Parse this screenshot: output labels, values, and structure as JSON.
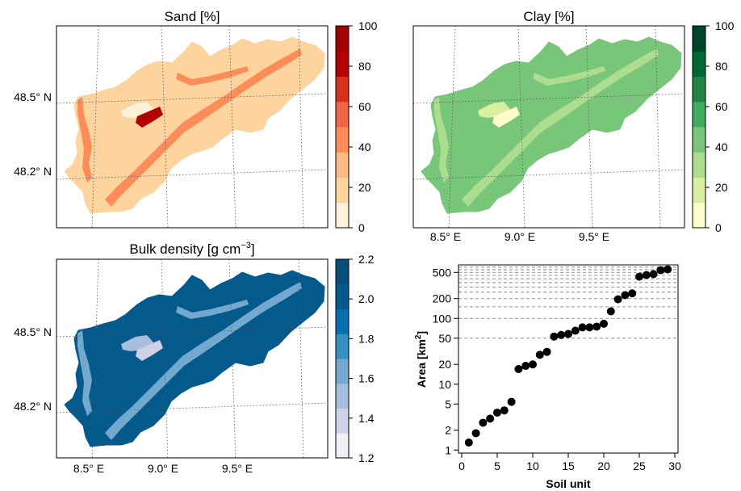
{
  "chart_data": [
    {
      "type": "map",
      "title": "Sand [%]",
      "lat_labels": [
        "48.5° N",
        "48.2° N"
      ],
      "lon_labels": [],
      "colorbar": {
        "ticks": [
          "0",
          "20",
          "40",
          "60",
          "80",
          "100"
        ],
        "colors": [
          "#fef0d9",
          "#fdd49e",
          "#fdbb84",
          "#fc8d59",
          "#ef6548",
          "#d7301f",
          "#b30000",
          "#a50000"
        ]
      },
      "fills": {
        "base": "#fdd49e",
        "band": "#fc8d59",
        "light": "#fef0d9",
        "hot": "#b30000"
      }
    },
    {
      "type": "map",
      "title": "Clay [%]",
      "lat_labels": [],
      "lon_labels": [
        "8.5° E",
        "9.0° E",
        "9.5° E"
      ],
      "colorbar": {
        "ticks": [
          "0",
          "20",
          "40",
          "60",
          "80",
          "100"
        ],
        "colors": [
          "#ffffcc",
          "#d9f0a3",
          "#addd8e",
          "#78c679",
          "#41ab5d",
          "#238443",
          "#006837",
          "#004529"
        ]
      },
      "fills": {
        "base": "#78c679",
        "band": "#addd8e",
        "light": "#d9f0a3",
        "hot": "#ffffcc"
      }
    },
    {
      "type": "map",
      "title": "Bulk density [g cm",
      "title_sup": "−3",
      "title_close": "]",
      "lat_labels": [
        "48.5° N",
        "48.2° N"
      ],
      "lon_labels": [
        "8.5° E",
        "9.0° E",
        "9.5° E"
      ],
      "colorbar": {
        "ticks": [
          "1.2",
          "1.4",
          "1.6",
          "1.8",
          "2.0",
          "2.2"
        ],
        "colors": [
          "#f1eef6",
          "#d0d1e6",
          "#a6bddb",
          "#74a9cf",
          "#3690c0",
          "#0570b0",
          "#045a8d",
          "#034e7b"
        ]
      },
      "fills": {
        "base": "#045a8d",
        "band": "#74a9cf",
        "light": "#a6bddb",
        "hot": "#d0d1e6"
      }
    },
    {
      "type": "scatter",
      "xlabel": "Soil unit",
      "ylabel": "Area [km",
      "ylabel_sup": "2",
      "ylabel_close": "]",
      "xlim": [
        0,
        30
      ],
      "ylim": [
        0.9,
        650
      ],
      "yscale": "log",
      "xticks": [
        0,
        5,
        10,
        15,
        20,
        25,
        30
      ],
      "yticks": [
        1,
        2,
        5,
        10,
        20,
        50,
        100,
        200,
        500
      ],
      "grid_lines": [
        50,
        100,
        150,
        200,
        250,
        300,
        350,
        400,
        450,
        500,
        550,
        600
      ],
      "x": [
        1,
        2,
        3,
        4,
        5,
        6,
        7,
        8,
        9,
        10,
        11,
        12,
        13,
        14,
        15,
        16,
        17,
        18,
        19,
        20,
        21,
        22,
        23,
        24,
        25,
        26,
        27,
        28,
        29
      ],
      "y": [
        1.3,
        1.8,
        2.6,
        3.0,
        3.7,
        4.0,
        5.4,
        17,
        19,
        20,
        28,
        31,
        53,
        56,
        58,
        65,
        73,
        73,
        75,
        83,
        128,
        195,
        225,
        240,
        430,
        455,
        470,
        540,
        555
      ]
    }
  ]
}
